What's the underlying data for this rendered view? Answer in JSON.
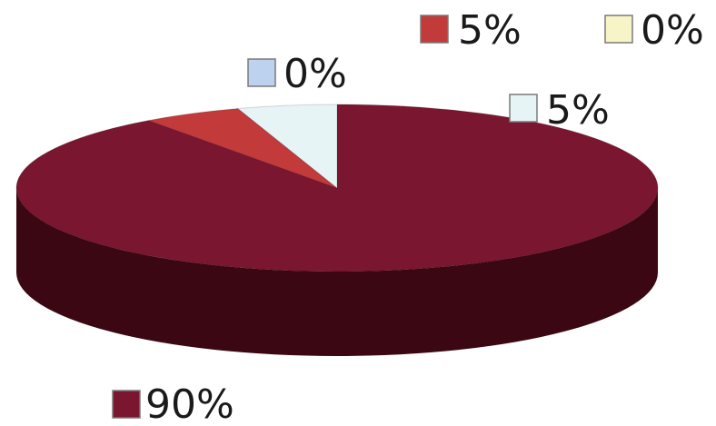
{
  "chart_data": {
    "type": "pie",
    "style": "3d",
    "slices": [
      {
        "label": "90%",
        "value": 90,
        "color": "#7a1630",
        "side_color": "#3a0712"
      },
      {
        "label": "5%",
        "value": 5,
        "color": "#c23a3a",
        "side_color": "#6e1616"
      },
      {
        "label": "0%",
        "value": 0,
        "color": "#f7f4c8",
        "side_color": "#b8b48a"
      },
      {
        "label": "5%",
        "value": 5,
        "color": "#e6f4f6",
        "side_color": "#9ab2b6"
      },
      {
        "label": "0%",
        "value": 0,
        "color": "#bcd2ee",
        "side_color": "#7d8fa8"
      }
    ],
    "legend": false,
    "data_labels": true
  }
}
